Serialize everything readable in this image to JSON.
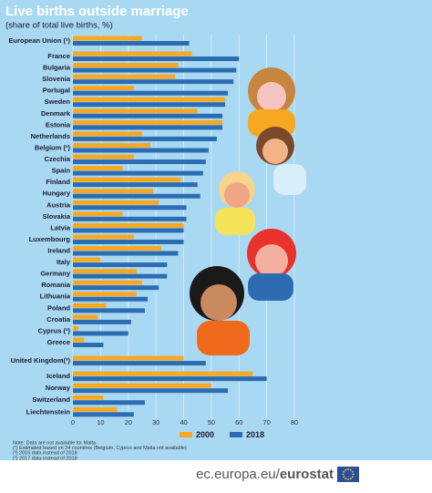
{
  "chart_data": {
    "type": "bar",
    "orientation": "horizontal",
    "title": "Live births outside marriage",
    "subtitle": "(share of total live births, %)",
    "categories": [
      "European Union (¹)",
      "France",
      "Bulgaria",
      "Slovenia",
      "Portugal",
      "Sweden",
      "Denmark",
      "Estonia",
      "Netherlands",
      "Belgium (²)",
      "Czechia",
      "Spain",
      "Finland",
      "Hungary",
      "Austria",
      "Slovakia",
      "Latvia",
      "Luxembourg",
      "Ireland",
      "Italy",
      "Germany",
      "Romania",
      "Lithuania",
      "Poland",
      "Croatia",
      "Cyprus (²)",
      "Greece",
      "United Kingdom(³)",
      "Iceland",
      "Norway",
      "Switzerland",
      "Liechtenstein"
    ],
    "series": [
      {
        "name": "2000",
        "color": "#f7a823",
        "values": [
          25,
          43,
          38,
          37,
          22,
          55,
          45,
          54,
          25,
          28,
          22,
          18,
          39,
          29,
          31,
          18,
          40,
          22,
          32,
          10,
          23,
          25,
          23,
          12,
          9,
          2,
          4,
          40,
          65,
          50,
          11,
          16
        ]
      },
      {
        "name": "2018",
        "color": "#2b6cb3",
        "values": [
          42,
          60,
          59,
          58,
          56,
          55,
          54,
          54,
          52,
          49,
          48,
          47,
          45,
          46,
          41,
          41,
          40,
          40,
          38,
          34,
          34,
          31,
          27,
          26,
          21,
          20,
          11,
          48,
          70,
          56,
          26,
          22
        ]
      }
    ],
    "xlim": [
      0,
      80
    ],
    "xticks": [
      0,
      10,
      20,
      30,
      40,
      50,
      60,
      70,
      80
    ],
    "grid": true,
    "notes": [
      "Note: Data are not available for Malta.",
      "(¹) Estimated based on 24 countries (Belgium, Cyprus and Malta not available)",
      "(²) 2016 data instead of 2018",
      "(³) 2017 data instead of 2018"
    ],
    "footer": {
      "site": "ec.europa.eu/",
      "brand": "eurostat"
    }
  }
}
